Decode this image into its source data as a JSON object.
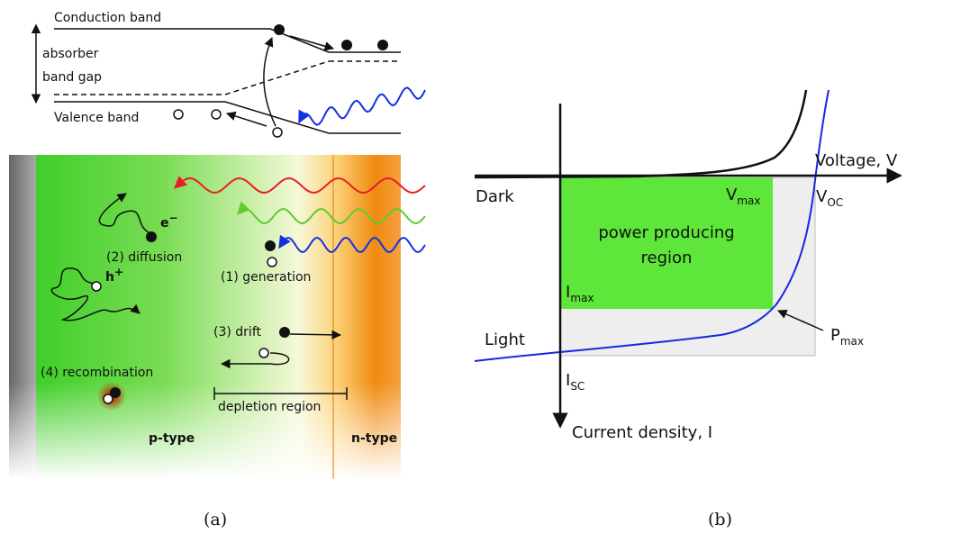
{
  "panel_a": {
    "band_diagram": {
      "conduction_band": "Conduction band",
      "band_gap_label": [
        "absorber",
        "band gap"
      ],
      "valence_band": "Valence band"
    },
    "device": {
      "electron": {
        "main": "e",
        "sup": "−"
      },
      "hole": {
        "main": "h",
        "sup": "+"
      },
      "diffusion": "(2) diffusion",
      "generation": "(1) generation",
      "drift": "(3) drift",
      "recombination": "(4) recombination",
      "depletion_region": "depletion region",
      "p_type": "p-type",
      "n_type": "n-type"
    },
    "caption": "(a)"
  },
  "panel_b": {
    "x_axis": "Voltage, V",
    "y_axis": "Current density, I",
    "dark": "Dark",
    "light": "Light",
    "v_max": {
      "main": "V",
      "sub": "max"
    },
    "v_oc": {
      "main": "V",
      "sub": "OC"
    },
    "i_max": {
      "main": "I",
      "sub": "max"
    },
    "i_sc": {
      "main": "I",
      "sub": "SC"
    },
    "p_max": {
      "main": "P",
      "sub": "max"
    },
    "region": [
      "power producing",
      "region"
    ],
    "caption": "(b)"
  }
}
